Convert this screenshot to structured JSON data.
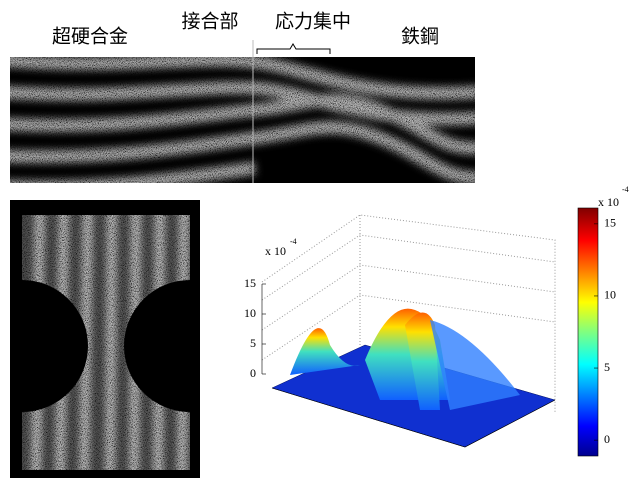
{
  "labels": {
    "carbide": "超硬合金",
    "joint": "接合部",
    "stress": "応力集中",
    "steel": "鉄鋼"
  },
  "surface_plot": {
    "zlim": [
      0,
      15
    ],
    "zticks": [
      0,
      5,
      10,
      15
    ],
    "scale_label": "x 10",
    "scale_exponent": "-4"
  },
  "colorbar": {
    "clim": [
      -1.1,
      16.1
    ],
    "ticks": [
      0,
      5,
      10,
      15
    ],
    "scale_label": "x 10",
    "scale_exponent": "-4"
  }
}
